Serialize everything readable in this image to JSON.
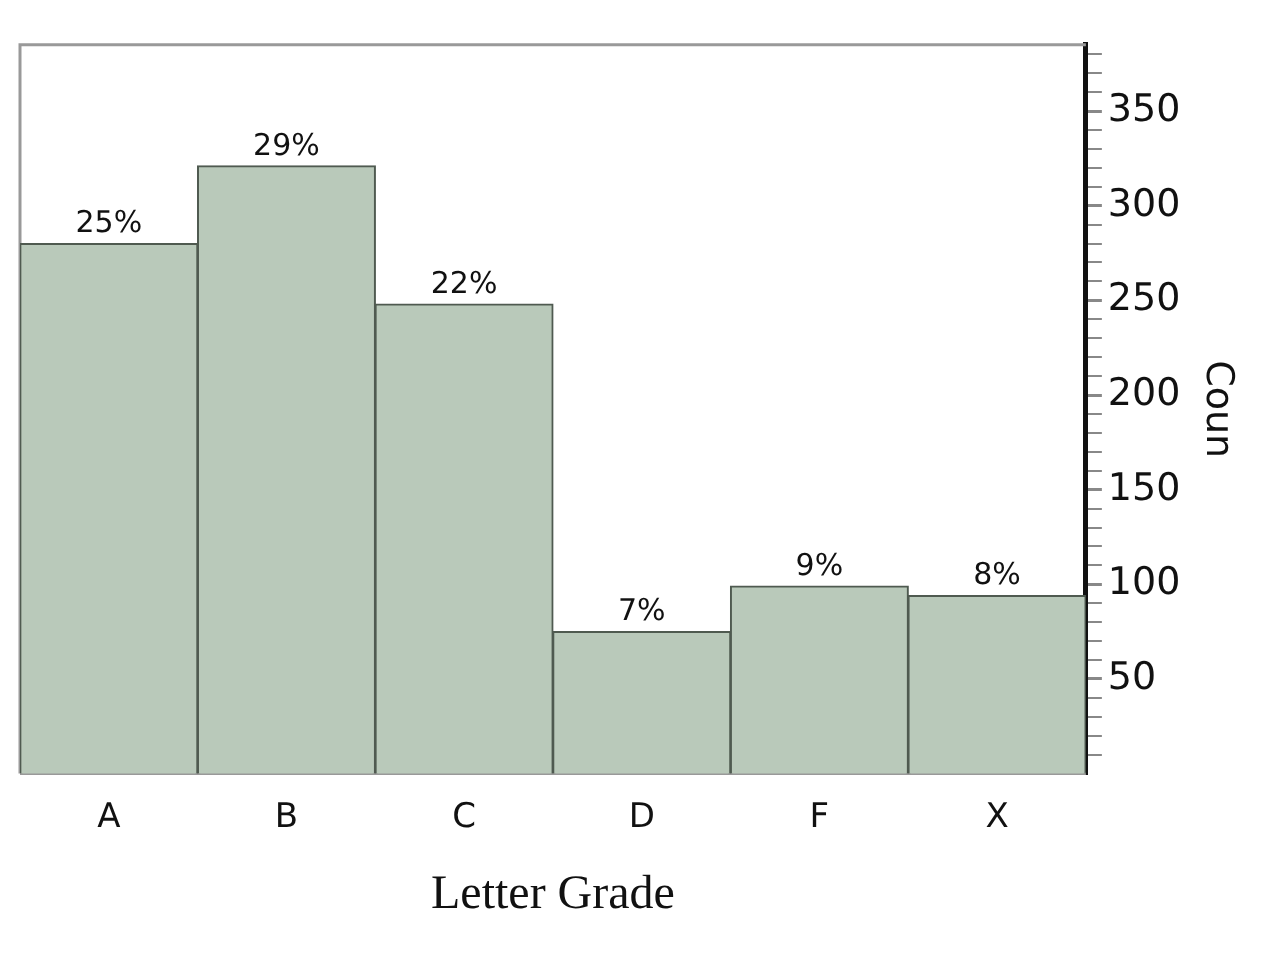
{
  "chart_data": {
    "type": "bar",
    "xlabel": "Letter Grade",
    "ylabel": "Coun",
    "categories": [
      "A",
      "B",
      "C",
      "D",
      "F",
      "X"
    ],
    "values": [
      280,
      321,
      248,
      75,
      99,
      94
    ],
    "annotations": [
      {
        "text": "25%",
        "x": "A",
        "y": 280
      },
      {
        "text": "29%",
        "x": "B",
        "y": 321
      },
      {
        "text": "22%",
        "x": "C",
        "y": 248
      },
      {
        "text": "7%",
        "x": "D",
        "y": 75
      },
      {
        "text": "9%",
        "x": "F",
        "y": 99
      },
      {
        "text": "8%",
        "x": "X",
        "y": 94
      }
    ],
    "color": "#b9c9ba",
    "ylim": [
      0,
      385
    ],
    "yticks": [
      {
        "value": 10,
        "label": null
      },
      {
        "value": 20,
        "label": null
      },
      {
        "value": 30,
        "label": null
      },
      {
        "value": 40,
        "label": null
      },
      50,
      {
        "value": 60,
        "label": null
      },
      {
        "value": 70,
        "label": null
      },
      {
        "value": 80,
        "label": null
      },
      {
        "value": 90,
        "label": null
      },
      100,
      {
        "value": 110,
        "label": null
      },
      {
        "value": 120,
        "label": null
      },
      {
        "value": 130,
        "label": null
      },
      {
        "value": 140,
        "label": null
      },
      150,
      {
        "value": 160,
        "label": null
      },
      {
        "value": 170,
        "label": null
      },
      {
        "value": 180,
        "label": null
      },
      {
        "value": 190,
        "label": null
      },
      200,
      {
        "value": 210,
        "label": null
      },
      {
        "value": 220,
        "label": null
      },
      {
        "value": 230,
        "label": null
      },
      {
        "value": 240,
        "label": null
      },
      250,
      {
        "value": 260,
        "label": null
      },
      {
        "value": 270,
        "label": null
      },
      {
        "value": 280,
        "label": null
      },
      {
        "value": 290,
        "label": null
      },
      300,
      {
        "value": 310,
        "label": null
      },
      {
        "value": 320,
        "label": null
      },
      {
        "value": 330,
        "label": null
      },
      {
        "value": 340,
        "label": null
      },
      350,
      {
        "value": 360,
        "label": null
      },
      {
        "value": 370,
        "label": null
      },
      {
        "value": 380,
        "label": null
      }
    ],
    "grid": false,
    "legend": false
  }
}
